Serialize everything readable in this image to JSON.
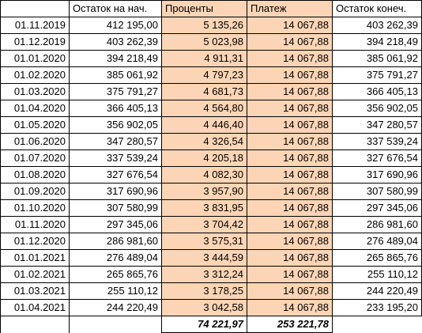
{
  "sheet": {
    "headers": [
      "",
      "Остаток на нач.",
      "Проценты",
      "Платеж",
      "Остаток конеч."
    ],
    "rows": [
      [
        "01.11.2019",
        "412 195,00",
        "5 135,26",
        "14 067,88",
        "403 262,39"
      ],
      [
        "01.12.2019",
        "403 262,39",
        "5 023,98",
        "14 067,88",
        "394 218,49"
      ],
      [
        "01.01.2020",
        "394 218,49",
        "4 911,31",
        "14 067,88",
        "385 061,92"
      ],
      [
        "01.02.2020",
        "385 061,92",
        "4 797,23",
        "14 067,88",
        "375 791,27"
      ],
      [
        "01.03.2020",
        "375 791,27",
        "4 681,73",
        "14 067,88",
        "366 405,13"
      ],
      [
        "01.04.2020",
        "366 405,13",
        "4 564,80",
        "14 067,88",
        "356 902,05"
      ],
      [
        "01.05.2020",
        "356 902,05",
        "4 446,40",
        "14 067,88",
        "347 280,57"
      ],
      [
        "01.06.2020",
        "347 280,57",
        "4 326,54",
        "14 067,88",
        "337 539,24"
      ],
      [
        "01.07.2020",
        "337 539,24",
        "4 205,18",
        "14 067,88",
        "327 676,54"
      ],
      [
        "01.08.2020",
        "327 676,54",
        "4 082,30",
        "14 067,88",
        "317 690,96"
      ],
      [
        "01.09.2020",
        "317 690,96",
        "3 957,90",
        "14 067,88",
        "307 580,99"
      ],
      [
        "01.10.2020",
        "307 580,99",
        "3 831,95",
        "14 067,88",
        "297 345,06"
      ],
      [
        "01.11.2020",
        "297 345,06",
        "3 704,42",
        "14 067,88",
        "286 981,60"
      ],
      [
        "01.12.2020",
        "286 981,60",
        "3 575,31",
        "14 067,88",
        "276 489,04"
      ],
      [
        "01.01.2021",
        "276 489,04",
        "3 444,59",
        "14 067,88",
        "265 865,76"
      ],
      [
        "01.02.2021",
        "265 865,76",
        "3 312,24",
        "14 067,88",
        "255 110,12"
      ],
      [
        "01.03.2021",
        "255 110,12",
        "3 178,25",
        "14 067,88",
        "244 220,49"
      ],
      [
        "01.04.2021",
        "244 220,49",
        "3 042,58",
        "14 067,88",
        "233 195,20"
      ]
    ],
    "totals": {
      "interest": "74 221,97",
      "payment": "253 221,78"
    },
    "colors": {
      "highlight": "#fbd5b5",
      "border": "#000000"
    }
  }
}
